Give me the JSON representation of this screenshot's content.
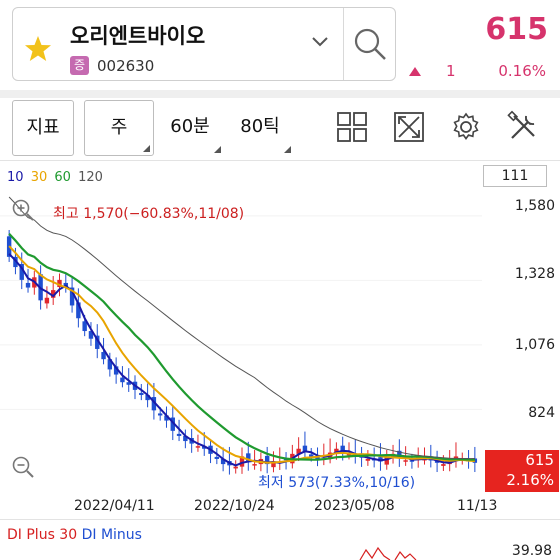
{
  "stock": {
    "name": "오리엔트바이오",
    "market_badge": "증",
    "code": "002630",
    "price": "615",
    "change": "1",
    "change_pct": "0.16%"
  },
  "toolbar": {
    "indicator_label": "지표",
    "period_label": "주",
    "minute_label": "60분",
    "tick_label": "80틱",
    "icons": [
      "grid-icon",
      "expand-icon",
      "settings-gear-icon",
      "tools-icon"
    ]
  },
  "chart": {
    "ma_legend": [
      {
        "label": "10",
        "color": "#1a1aa8"
      },
      {
        "label": "30",
        "color": "#e8a400"
      },
      {
        "label": "60",
        "color": "#1f9a2f"
      },
      {
        "label": "120",
        "color": "#555555"
      }
    ],
    "visible_count": "111",
    "y_ticks": [
      "1,580",
      "1,328",
      "1,076",
      "824"
    ],
    "x_ticks": [
      "2022/04/11",
      "2022/10/24",
      "2023/05/08",
      "11/13"
    ],
    "high_label": "최고 1,570(−60.83%,11/08)",
    "low_label": "최저 573(7.33%,10/16)",
    "current_price_tag": "615",
    "current_pct_tag": "2.16%",
    "up_color": "#e0282d",
    "down_color": "#1f4fd1"
  },
  "indicator": {
    "title_plus": "DI Plus 30",
    "title_minus": "DI Minus",
    "value": "39.98"
  },
  "chart_data": {
    "type": "candlestick",
    "x_tick_labels": [
      "2022/04/11",
      "2022/10/24",
      "2023/05/08",
      "11/13"
    ],
    "y_tick_labels": [
      "1,580",
      "1,328",
      "1,076",
      "824"
    ],
    "period": "weekly",
    "high": {
      "value": 1570,
      "pct_from_current": "-60.83%",
      "date": "11/08"
    },
    "low": {
      "value": 573,
      "pct_from_current": "7.33%",
      "date": "10/16"
    },
    "close_approx": [
      1420,
      1380,
      1330,
      1300,
      1340,
      1250,
      1260,
      1290,
      1330,
      1300,
      1230,
      1180,
      1130,
      1100,
      1060,
      1020,
      980,
      960,
      930,
      920,
      900,
      880,
      860,
      820,
      800,
      780,
      740,
      720,
      700,
      690,
      680,
      670,
      650,
      630,
      610,
      605,
      600,
      640,
      620,
      610,
      630,
      610,
      615,
      620,
      625,
      650,
      670,
      660,
      640,
      630,
      645,
      655,
      670,
      660,
      650,
      640,
      635,
      630,
      625,
      620,
      640,
      650,
      635,
      625,
      620,
      640,
      630,
      625,
      615,
      610,
      620,
      640,
      630,
      620,
      615
    ],
    "moving_averages": [
      "10",
      "30",
      "60",
      "120"
    ],
    "current": 615
  }
}
